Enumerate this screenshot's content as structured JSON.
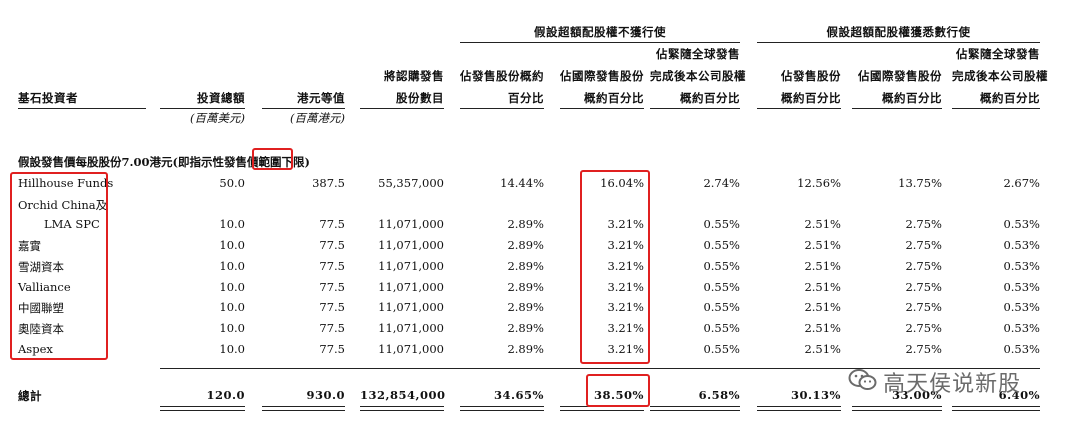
{
  "group_headers": {
    "no_overallotment": "假設超額配股權不獲行使",
    "full_overallotment": "假設超額配股權獲悉數行使"
  },
  "columns": {
    "investor": "基石投資者",
    "investment_total": "投資總額",
    "hkd_equivalent": "港元等值",
    "shares_subscribed": [
      "將認購發售",
      "股份數目"
    ],
    "pct_offer_1": [
      "佔發售股份概約",
      "百分比"
    ],
    "pct_intl_1": [
      "佔國際發售股份",
      "概約百分比"
    ],
    "pct_total_1": [
      "佔緊隨全球發售",
      "完成後本公司股權",
      "概約百分比"
    ],
    "pct_offer_2": [
      "佔發售股份",
      "概約百分比"
    ],
    "pct_intl_2": [
      "佔國際發售股份",
      "概約百分比"
    ],
    "pct_total_2": [
      "佔緊隨全球發售",
      "完成後本公司股權",
      "概約百分比"
    ]
  },
  "units": {
    "usd_million": "(百萬美元)",
    "hkd_million": "(百萬港元)"
  },
  "section_label": "假設發售價每股股份7.00港元(即指示性發售價範圍下限)",
  "rows": [
    {
      "name": [
        "Hillhouse Funds"
      ],
      "usd": "50.0",
      "hkd": "387.5",
      "shares": "55,357,000",
      "p1": "14.44%",
      "p2": "16.04%",
      "p3": "2.74%",
      "p4": "12.56%",
      "p5": "13.75%",
      "p6": "2.67%"
    },
    {
      "name": [
        "Orchid China及",
        "LMA SPC"
      ],
      "usd": "10.0",
      "hkd": "77.5",
      "shares": "11,071,000",
      "p1": "2.89%",
      "p2": "3.21%",
      "p3": "0.55%",
      "p4": "2.51%",
      "p5": "2.75%",
      "p6": "0.53%"
    },
    {
      "name": [
        "嘉實"
      ],
      "usd": "10.0",
      "hkd": "77.5",
      "shares": "11,071,000",
      "p1": "2.89%",
      "p2": "3.21%",
      "p3": "0.55%",
      "p4": "2.51%",
      "p5": "2.75%",
      "p6": "0.53%"
    },
    {
      "name": [
        "雪湖資本"
      ],
      "usd": "10.0",
      "hkd": "77.5",
      "shares": "11,071,000",
      "p1": "2.89%",
      "p2": "3.21%",
      "p3": "0.55%",
      "p4": "2.51%",
      "p5": "2.75%",
      "p6": "0.53%"
    },
    {
      "name": [
        "Valliance"
      ],
      "usd": "10.0",
      "hkd": "77.5",
      "shares": "11,071,000",
      "p1": "2.89%",
      "p2": "3.21%",
      "p3": "0.55%",
      "p4": "2.51%",
      "p5": "2.75%",
      "p6": "0.53%"
    },
    {
      "name": [
        "中國聯塑"
      ],
      "usd": "10.0",
      "hkd": "77.5",
      "shares": "11,071,000",
      "p1": "2.89%",
      "p2": "3.21%",
      "p3": "0.55%",
      "p4": "2.51%",
      "p5": "2.75%",
      "p6": "0.53%"
    },
    {
      "name": [
        "奧陸資本"
      ],
      "usd": "10.0",
      "hkd": "77.5",
      "shares": "11,071,000",
      "p1": "2.89%",
      "p2": "3.21%",
      "p3": "0.55%",
      "p4": "2.51%",
      "p5": "2.75%",
      "p6": "0.53%"
    },
    {
      "name": [
        "Aspex"
      ],
      "usd": "10.0",
      "hkd": "77.5",
      "shares": "11,071,000",
      "p1": "2.89%",
      "p2": "3.21%",
      "p3": "0.55%",
      "p4": "2.51%",
      "p5": "2.75%",
      "p6": "0.53%"
    }
  ],
  "total": {
    "label": "總計",
    "usd": "120.0",
    "hkd": "930.0",
    "shares": "132,854,000",
    "p1": "34.65%",
    "p2": "38.50%",
    "p3": "6.58%",
    "p4": "30.13%",
    "p5": "33.00%",
    "p6": "6.40%"
  },
  "watermark": {
    "text": "高天侯说新股",
    "icon": "wechat-icon"
  },
  "highlight_color": "#e02020"
}
